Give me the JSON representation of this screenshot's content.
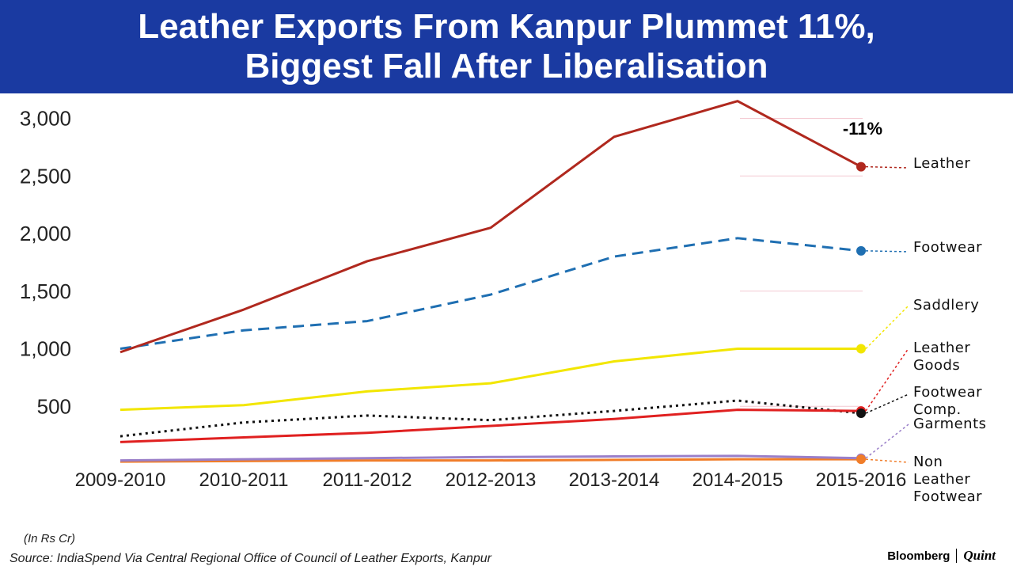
{
  "header": {
    "title_line1": "Leather Exports From Kanpur Plummet 11%,",
    "title_line2": "Biggest Fall After Liberalisation"
  },
  "footer": {
    "unit_note": "(In Rs Cr)",
    "source": "Source: IndiaSpend Via Central Regional Office of Council of Leather Exports, Kanpur",
    "brand_left": "Bloomberg",
    "brand_right": "Quint"
  },
  "colors": {
    "title_bg": "#1a3aa1",
    "leather": "#b0281e",
    "footwear": "#1f6fb2",
    "saddlery": "#f2e600",
    "leather_goods": "#e02020",
    "footwear_comp": "#111111",
    "garments": "#9a7fc9",
    "non_leather_footwear": "#f07d2a"
  },
  "chart_data": {
    "type": "line",
    "categories": [
      "2009-2010",
      "2010-2011",
      "2011-2012",
      "2012-2013",
      "2013-2014",
      "2014-2015",
      "2015-2016"
    ],
    "yticks": [
      500,
      1000,
      1500,
      2000,
      2500,
      3000
    ],
    "ytick_labels": [
      "500",
      "1,000",
      "1,500",
      "2,000",
      "2,500",
      "3,000"
    ],
    "ylim": [
      0,
      3150
    ],
    "annotation": "-11%",
    "grid": false,
    "series": [
      {
        "name": "Leather",
        "label_lines": [
          "Leather"
        ],
        "color": "#b0281e",
        "style": "solid",
        "values": [
          970,
          1340,
          1760,
          2050,
          2840,
          3150,
          2580
        ]
      },
      {
        "name": "Footwear",
        "label_lines": [
          "Footwear"
        ],
        "color": "#1f6fb2",
        "style": "dashed",
        "values": [
          1000,
          1160,
          1240,
          1470,
          1800,
          1960,
          1850
        ]
      },
      {
        "name": "Saddlery",
        "label_lines": [
          "Saddlery"
        ],
        "color": "#f2e600",
        "style": "solid",
        "values": [
          470,
          510,
          630,
          700,
          890,
          1000,
          1000
        ]
      },
      {
        "name": "Leather Goods",
        "label_lines": [
          "Leather",
          "Goods"
        ],
        "color": "#e02020",
        "style": "solid",
        "values": [
          190,
          230,
          270,
          330,
          390,
          470,
          460
        ]
      },
      {
        "name": "Footwear Comp.",
        "label_lines": [
          "Footwear",
          "Comp."
        ],
        "color": "#111111",
        "style": "dotted",
        "values": [
          240,
          360,
          420,
          380,
          460,
          550,
          440
        ]
      },
      {
        "name": "Garments",
        "label_lines": [
          "Garments"
        ],
        "color": "#9a7fc9",
        "style": "solid",
        "values": [
          30,
          40,
          50,
          60,
          65,
          70,
          50
        ]
      },
      {
        "name": "Non Leather Footwear",
        "label_lines": [
          "Non",
          "Leather",
          "Footwear"
        ],
        "color": "#f07d2a",
        "style": "solid",
        "values": [
          20,
          25,
          30,
          30,
          35,
          40,
          40
        ]
      }
    ]
  }
}
